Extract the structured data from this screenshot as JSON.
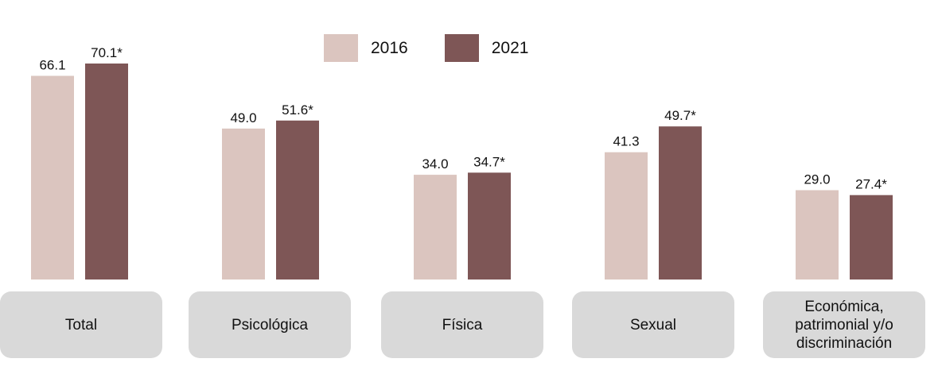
{
  "chart_data": {
    "type": "bar",
    "categories": [
      "Total",
      "Psicológica",
      "Física",
      "Sexual",
      "Económica,\npatrimonial y/o\ndiscriminación"
    ],
    "series": [
      {
        "name": "2016",
        "color": "#dbc5bf",
        "values": [
          66.1,
          49.0,
          34.0,
          41.3,
          29.0
        ],
        "labels": [
          "66.1",
          "49.0",
          "34.0",
          "41.3",
          "29.0"
        ]
      },
      {
        "name": "2021",
        "color": "#7e5656",
        "values": [
          70.1,
          51.6,
          34.7,
          49.7,
          27.4
        ],
        "labels": [
          "70.1*",
          "51.6*",
          "34.7*",
          "49.7*",
          "27.4*"
        ]
      }
    ],
    "ylim": [
      0,
      75
    ],
    "grid": false,
    "legend_position": "top-center",
    "title": "",
    "xlabel": "",
    "ylabel": ""
  }
}
